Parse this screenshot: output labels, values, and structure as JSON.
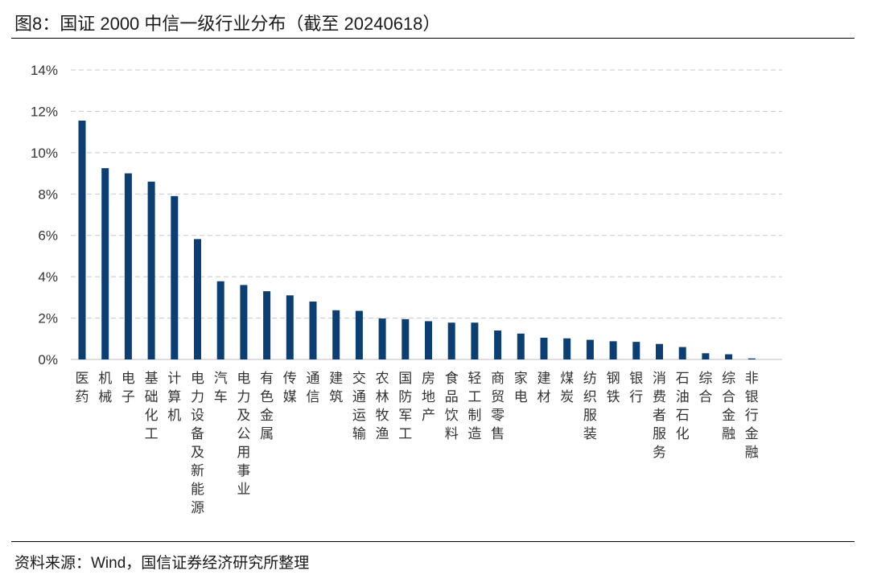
{
  "title": "图8：国证 2000 中信一级行业分布（截至 20240618）",
  "source": "资料来源：Wind，国信证券经济研究所整理",
  "chart_data": {
    "type": "bar",
    "title": "图8：国证 2000 中信一级行业分布（截至 20240618）",
    "xlabel": "",
    "ylabel": "",
    "ylim": [
      0,
      14
    ],
    "yticks": [
      "0%",
      "2%",
      "4%",
      "6%",
      "8%",
      "10%",
      "12%",
      "14%"
    ],
    "grid": "horizontal dashed",
    "bar_color": "#0b3f73",
    "categories": [
      "医药",
      "机械",
      "电子",
      "基础化工",
      "计算机",
      "电力设备及新能源",
      "汽车",
      "电力及公用事业",
      "有色金属",
      "传媒",
      "通信",
      "建筑",
      "交通运输",
      "农林牧渔",
      "国防军工",
      "房地产",
      "食品饮料",
      "轻工制造",
      "商贸零售",
      "家电",
      "建材",
      "煤炭",
      "纺织服装",
      "钢铁",
      "银行",
      "消费者服务",
      "石油石化",
      "综合",
      "综合金融",
      "非银行金融"
    ],
    "values": [
      11.55,
      9.25,
      9.0,
      8.6,
      7.9,
      5.82,
      3.78,
      3.6,
      3.3,
      3.1,
      2.8,
      2.38,
      2.35,
      1.98,
      1.95,
      1.85,
      1.78,
      1.78,
      1.4,
      1.25,
      1.05,
      1.02,
      0.95,
      0.88,
      0.85,
      0.75,
      0.6,
      0.3,
      0.25,
      0.05
    ]
  }
}
